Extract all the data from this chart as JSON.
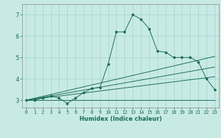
{
  "xlabel": "Humidex (Indice chaleur)",
  "bg_color": "#c8eae4",
  "grid_color": "#a0d4cc",
  "line_color": "#1a6b5a",
  "xlim": [
    -0.5,
    23.5
  ],
  "ylim": [
    2.65,
    7.5
  ],
  "xticks": [
    0,
    1,
    2,
    3,
    4,
    5,
    6,
    7,
    8,
    9,
    10,
    11,
    12,
    13,
    14,
    15,
    16,
    17,
    18,
    19,
    20,
    21,
    22,
    23
  ],
  "yticks": [
    3,
    4,
    5,
    6,
    7
  ],
  "main_series": {
    "x": [
      0,
      1,
      2,
      3,
      4,
      5,
      6,
      7,
      8,
      9,
      10,
      11,
      12,
      13,
      14,
      15,
      16,
      17,
      18,
      19,
      20,
      21,
      22,
      23
    ],
    "y": [
      3.0,
      3.0,
      3.1,
      3.2,
      3.1,
      2.85,
      3.1,
      3.35,
      3.55,
      3.6,
      4.7,
      6.2,
      6.2,
      7.0,
      6.8,
      6.35,
      5.3,
      5.25,
      5.0,
      5.0,
      5.0,
      4.8,
      4.0,
      3.5
    ]
  },
  "trend_lines": [
    {
      "x": [
        0,
        23
      ],
      "y": [
        3.0,
        5.05
      ]
    },
    {
      "x": [
        0,
        23
      ],
      "y": [
        3.0,
        4.55
      ]
    },
    {
      "x": [
        0,
        23
      ],
      "y": [
        3.0,
        4.1
      ]
    },
    {
      "x": [
        0,
        23
      ],
      "y": [
        3.0,
        3.0
      ]
    }
  ]
}
